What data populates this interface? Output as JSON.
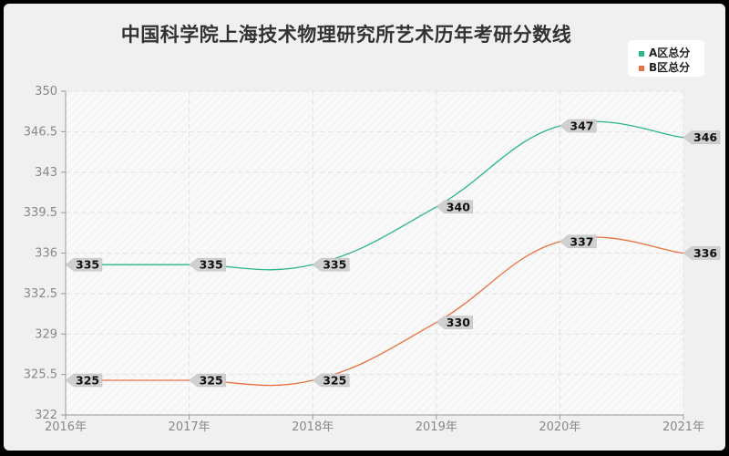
{
  "chart_data": {
    "type": "line",
    "title": "中国科学院上海技术物理研究所艺术历年考研分数线",
    "xlabel": "",
    "ylabel": "",
    "categories": [
      "2016年",
      "2017年",
      "2018年",
      "2019年",
      "2020年",
      "2021年"
    ],
    "series": [
      {
        "name": "A区总分",
        "color": "#2bb58a",
        "values": [
          335,
          335,
          335,
          340,
          347,
          346
        ]
      },
      {
        "name": "B区总分",
        "color": "#e8703e",
        "values": [
          325,
          325,
          325,
          330,
          337,
          336
        ]
      }
    ],
    "ylim": [
      322,
      350
    ],
    "yticks": [
      "350",
      "346.5",
      "343",
      "339.5",
      "336",
      "332.5",
      "329",
      "325.5",
      "322"
    ],
    "grid": true,
    "legend_position": "top-right"
  },
  "legend": {
    "a_label": "A区总分",
    "b_label": "B区总分"
  }
}
